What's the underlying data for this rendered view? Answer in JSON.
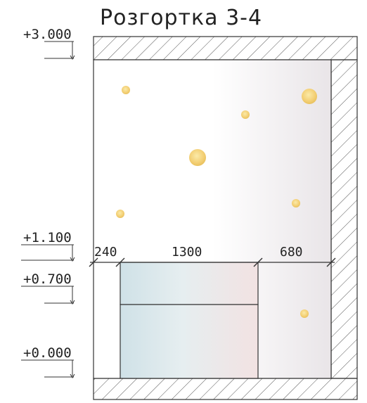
{
  "title": "Розгортка 3-4",
  "elevations": [
    {
      "label": "+3.000"
    },
    {
      "label": "+1.100"
    },
    {
      "label": "+0.700"
    },
    {
      "label": "+0.000"
    }
  ],
  "dimensions": [
    {
      "label": "240"
    },
    {
      "label": "1300"
    },
    {
      "label": "680"
    }
  ],
  "colors": {
    "line": "#333333",
    "hatch": "#555555",
    "light_fixture": "#f4d27a",
    "wall_gradient_end": "#ece8ea",
    "cabinet_blue": "#d2e3e9",
    "cabinet_pink": "#f1e1e2"
  }
}
